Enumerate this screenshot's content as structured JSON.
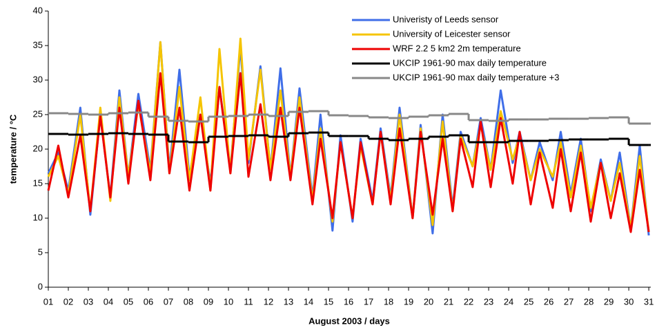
{
  "chart_data": {
    "type": "line",
    "xlabel": "August 2003 / days",
    "ylabel": "temperature / °C",
    "xlim": [
      1,
      31.1
    ],
    "ylim": [
      0,
      40
    ],
    "xticks": [
      {
        "value": 1,
        "label": "01"
      },
      {
        "value": 2,
        "label": "02"
      },
      {
        "value": 3,
        "label": "03"
      },
      {
        "value": 4,
        "label": "04"
      },
      {
        "value": 5,
        "label": "05"
      },
      {
        "value": 6,
        "label": "06"
      },
      {
        "value": 7,
        "label": "07"
      },
      {
        "value": 8,
        "label": "08"
      },
      {
        "value": 9,
        "label": "09"
      },
      {
        "value": 10,
        "label": "10"
      },
      {
        "value": 11,
        "label": "11"
      },
      {
        "value": 12,
        "label": "12"
      },
      {
        "value": 13,
        "label": "13"
      },
      {
        "value": 14,
        "label": "14"
      },
      {
        "value": 15,
        "label": "15"
      },
      {
        "value": 16,
        "label": "16"
      },
      {
        "value": 17,
        "label": "17"
      },
      {
        "value": 18,
        "label": "18"
      },
      {
        "value": 19,
        "label": "19"
      },
      {
        "value": 20,
        "label": "20"
      },
      {
        "value": 21,
        "label": "21"
      },
      {
        "value": 22,
        "label": "22"
      },
      {
        "value": 23,
        "label": "23"
      },
      {
        "value": 24,
        "label": "24"
      },
      {
        "value": 25,
        "label": "25"
      },
      {
        "value": 26,
        "label": "26"
      },
      {
        "value": 27,
        "label": "27"
      },
      {
        "value": 28,
        "label": "28"
      },
      {
        "value": 29,
        "label": "29"
      },
      {
        "value": 30,
        "label": "30"
      },
      {
        "value": 31,
        "label": "31"
      }
    ],
    "yticks": [
      0,
      5,
      10,
      15,
      20,
      25,
      30,
      35,
      40
    ],
    "grid": false,
    "legend": "upper right",
    "x": [
      1.0,
      1.5,
      2.0,
      2.6,
      3.1,
      3.6,
      4.1,
      4.55,
      5.0,
      5.5,
      6.1,
      6.6,
      7.05,
      7.55,
      8.05,
      8.6,
      9.1,
      9.55,
      10.1,
      10.6,
      11.0,
      11.6,
      12.1,
      12.6,
      13.1,
      13.55,
      14.2,
      14.6,
      15.2,
      15.6,
      16.2,
      16.6,
      17.2,
      17.6,
      18.1,
      18.55,
      19.2,
      19.6,
      20.2,
      20.7,
      21.2,
      21.6,
      22.2,
      22.6,
      23.1,
      23.6,
      24.2,
      24.55,
      25.1,
      25.55,
      26.2,
      26.6,
      27.1,
      27.6,
      28.1,
      28.6,
      29.1,
      29.55,
      30.1,
      30.55,
      31.0
    ],
    "series": [
      {
        "name": "Univeristy of Leeds sensor",
        "color": "#3f6ee8",
        "values": [
          16.5,
          19.5,
          14,
          26,
          10.5,
          25,
          13,
          28.5,
          16,
          28,
          17,
          35.5,
          17,
          31.5,
          16,
          25,
          15,
          29,
          17,
          35,
          18,
          32,
          17,
          31.7,
          16,
          28.8,
          13,
          25,
          8.2,
          22,
          9.5,
          21.5,
          12.5,
          23,
          13,
          26,
          10,
          23.5,
          7.8,
          25,
          11.5,
          22.5,
          17.5,
          24.5,
          17,
          28.5,
          18,
          22.5,
          15.5,
          21,
          15.5,
          22.5,
          13.5,
          21.5,
          11,
          18.5,
          12.5,
          19.5,
          8.5,
          20.5,
          7.5
        ]
      },
      {
        "name": "University of Leicester sensor",
        "color": "#f5c400",
        "values": [
          16,
          19,
          13.5,
          25,
          11,
          26,
          12.5,
          27.5,
          16,
          26.5,
          16.5,
          35.5,
          16.5,
          29,
          15.5,
          27.5,
          14,
          34.5,
          16.5,
          36,
          18.5,
          31.5,
          17,
          28.5,
          16,
          27.5,
          12.5,
          23,
          9.5,
          21,
          10,
          20.5,
          12,
          22.5,
          12.5,
          25,
          10,
          23,
          9,
          24,
          11,
          22,
          17.5,
          23.5,
          17,
          25.5,
          18.5,
          22,
          15.5,
          20,
          16,
          21,
          13,
          20.5,
          11.5,
          18,
          12.5,
          18,
          8.5,
          19,
          8
        ]
      },
      {
        "name": "WRF 2.2 5 km2 2m temperature",
        "color": "#ee0000",
        "values": [
          14,
          20.5,
          13,
          22,
          11,
          24.8,
          13,
          26,
          15,
          27,
          15.5,
          31,
          16.5,
          26,
          14,
          25,
          14,
          29,
          16.5,
          31,
          16,
          26.5,
          15.5,
          26,
          15.5,
          26,
          12,
          21.5,
          10,
          21,
          10,
          21,
          12,
          22.5,
          12,
          23,
          10,
          22.5,
          10.5,
          21.5,
          11,
          21.5,
          14.5,
          24,
          14.5,
          24.5,
          15,
          22.5,
          12,
          19.5,
          11.5,
          20,
          11,
          19.5,
          9.5,
          18,
          10,
          16.5,
          8,
          17,
          8
        ]
      },
      {
        "name": "UKCIP 1961-90 max daily  temperature",
        "color": "#000000",
        "step": true,
        "x": [
          1,
          2,
          3,
          4,
          5,
          6,
          7,
          8,
          9,
          10,
          11,
          12,
          13,
          14,
          15,
          16,
          17,
          18,
          19,
          20,
          21,
          22,
          23,
          24,
          25,
          26,
          27,
          28,
          29,
          30,
          31
        ],
        "values": [
          22.2,
          22.1,
          22.2,
          22.3,
          22.2,
          22.1,
          21.1,
          21.0,
          21.8,
          21.9,
          22.0,
          21.8,
          22.3,
          22.4,
          21.9,
          21.9,
          21.5,
          21.3,
          21.5,
          21.8,
          22.0,
          21.0,
          21.0,
          21.2,
          21.2,
          21.3,
          21.4,
          21.4,
          21.5,
          20.6,
          20.6
        ]
      },
      {
        "name": "UKCIP 1961-90 max daily temperature +3",
        "color": "#888888",
        "step": true,
        "x": [
          1,
          2,
          3,
          4,
          5,
          6,
          7,
          8,
          9,
          10,
          11,
          12,
          13,
          14,
          15,
          16,
          17,
          18,
          19,
          20,
          21,
          22,
          23,
          24,
          25,
          26,
          27,
          28,
          29,
          30,
          31
        ],
        "values": [
          25.2,
          25.1,
          25.0,
          25.2,
          25.3,
          24.7,
          24.1,
          24.0,
          24.7,
          24.8,
          25.0,
          24.8,
          25.4,
          25.5,
          24.9,
          24.8,
          24.6,
          24.5,
          24.7,
          24.9,
          25.1,
          24.2,
          24.1,
          24.3,
          24.3,
          24.4,
          24.4,
          24.5,
          24.6,
          23.7,
          23.7
        ]
      }
    ]
  }
}
